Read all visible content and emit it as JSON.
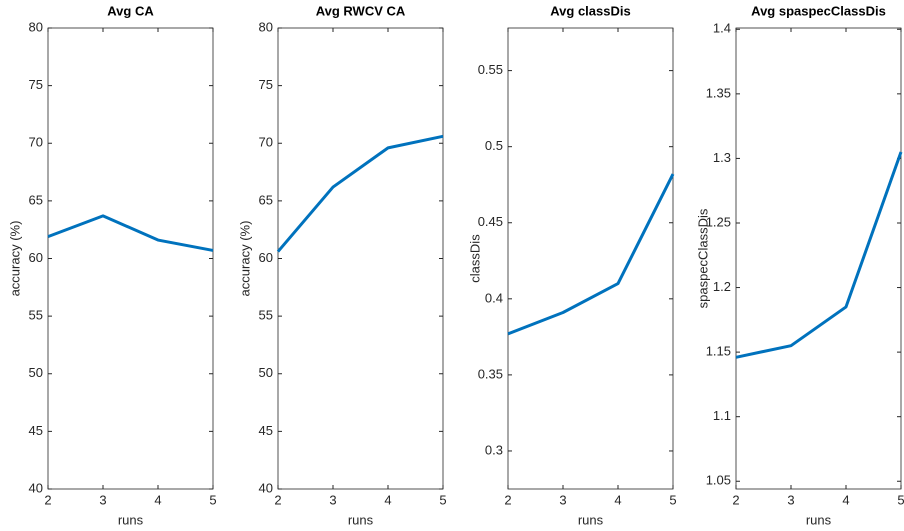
{
  "chart_data": [
    {
      "type": "line",
      "title": "Avg CA",
      "xlabel": "runs",
      "ylabel": "accuracy (%)",
      "x": [
        2,
        3,
        4,
        5
      ],
      "series": [
        {
          "color": "#0072bd",
          "values": [
            61.9,
            63.7,
            61.6,
            60.7
          ]
        }
      ],
      "xlim": [
        2,
        5
      ],
      "xticks": [
        2,
        3,
        4,
        5
      ],
      "ylim": [
        40,
        80
      ],
      "yticks": [
        40,
        45,
        50,
        55,
        60,
        65,
        70,
        75,
        80
      ]
    },
    {
      "type": "line",
      "title": "Avg RWCV CA",
      "xlabel": "runs",
      "ylabel": "accuracy (%)",
      "x": [
        2,
        3,
        4,
        5
      ],
      "series": [
        {
          "color": "#0072bd",
          "values": [
            60.6,
            66.2,
            69.6,
            70.6
          ]
        }
      ],
      "xlim": [
        2,
        5
      ],
      "xticks": [
        2,
        3,
        4,
        5
      ],
      "ylim": [
        40,
        80
      ],
      "yticks": [
        40,
        45,
        50,
        55,
        60,
        65,
        70,
        75,
        80
      ]
    },
    {
      "type": "line",
      "title": "Avg classDis",
      "xlabel": "runs",
      "ylabel": "classDis",
      "x": [
        2,
        3,
        4,
        5
      ],
      "series": [
        {
          "color": "#0072bd",
          "values": [
            0.377,
            0.391,
            0.41,
            0.482
          ]
        }
      ],
      "xlim": [
        2,
        5
      ],
      "xticks": [
        2,
        3,
        4,
        5
      ],
      "ylim": [
        0.275,
        0.578
      ],
      "yticks": [
        0.3,
        0.35,
        0.4,
        0.45,
        0.5,
        0.55
      ]
    },
    {
      "type": "line",
      "title": "Avg spaspecClassDis",
      "xlabel": "runs",
      "ylabel": "spaspecClassDis",
      "x": [
        2,
        3,
        4,
        5
      ],
      "series": [
        {
          "color": "#0072bd",
          "values": [
            1.146,
            1.155,
            1.185,
            1.305
          ]
        }
      ],
      "xlim": [
        2,
        5
      ],
      "xticks": [
        2,
        3,
        4,
        5
      ],
      "ylim": [
        1.044,
        1.401
      ],
      "yticks": [
        1.05,
        1.1,
        1.15,
        1.2,
        1.25,
        1.3,
        1.35,
        1.4
      ]
    }
  ]
}
